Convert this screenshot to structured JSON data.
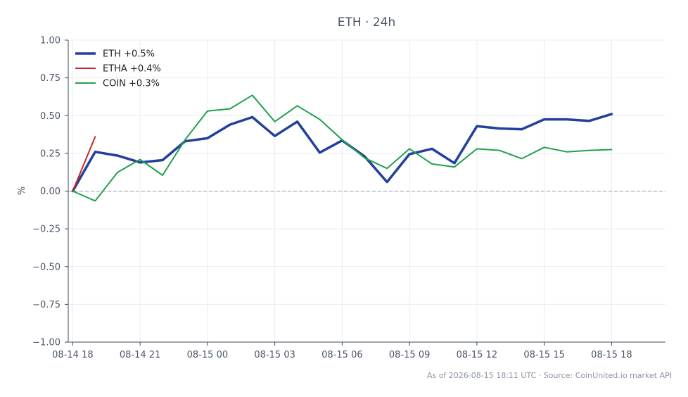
{
  "chart_data": {
    "type": "line",
    "title": "ETH · 24h",
    "xlabel": "",
    "ylabel": "%",
    "ylim": [
      -1.0,
      1.0
    ],
    "xlim": [
      -0.2,
      26.4
    ],
    "yticks": [
      1.0,
      0.75,
      0.5,
      0.25,
      0.0,
      -0.25,
      -0.5,
      -0.75,
      -1.0
    ],
    "ytick_labels": [
      "1.00",
      "0.75",
      "0.50",
      "0.25",
      "0.00",
      "−0.25",
      "−0.50",
      "−0.75",
      "−1.00"
    ],
    "xticks": [
      0,
      3,
      6,
      9,
      12,
      15,
      18,
      21,
      24
    ],
    "xtick_labels": [
      "08-14 18",
      "08-14 21",
      "08-15 00",
      "08-15 03",
      "08-15 06",
      "08-15 09",
      "08-15 12",
      "08-15 15",
      "08-15 18"
    ],
    "grid": true,
    "zero_line": true,
    "legend_position": "top-left",
    "series": [
      {
        "name": "ETH +0.5%",
        "color": "#23409a",
        "x": [
          0,
          1,
          2,
          3,
          4,
          5,
          6,
          7,
          8,
          9,
          10,
          11,
          12,
          13,
          14,
          15,
          16,
          17,
          18,
          19,
          20,
          21,
          22,
          23,
          24
        ],
        "values": [
          0.0,
          0.26,
          0.235,
          0.19,
          0.205,
          0.33,
          0.35,
          0.44,
          0.49,
          0.365,
          0.46,
          0.255,
          0.335,
          0.23,
          0.06,
          0.245,
          0.28,
          0.185,
          0.43,
          0.415,
          0.41,
          0.475,
          0.475,
          0.465,
          0.51
        ]
      },
      {
        "name": "ETHA +0.4%",
        "color": "#c8262c",
        "x": [
          0,
          1
        ],
        "values": [
          0.0,
          0.36
        ]
      },
      {
        "name": "COIN +0.3%",
        "color": "#22a04c",
        "x": [
          0,
          1,
          2,
          3,
          4,
          5,
          6,
          7,
          8,
          9,
          10,
          11,
          12,
          13,
          14,
          15,
          16,
          17,
          18,
          19,
          20,
          21,
          22,
          23,
          24
        ],
        "values": [
          0.0,
          -0.065,
          0.125,
          0.21,
          0.105,
          0.34,
          0.53,
          0.545,
          0.635,
          0.46,
          0.565,
          0.475,
          0.34,
          0.22,
          0.15,
          0.28,
          0.18,
          0.16,
          0.28,
          0.27,
          0.215,
          0.29,
          0.26,
          0.27,
          0.275
        ]
      }
    ]
  },
  "footer": {
    "source": "As of 2026-08-15 18:11 UTC · Source: CoinUnited.io market API"
  }
}
